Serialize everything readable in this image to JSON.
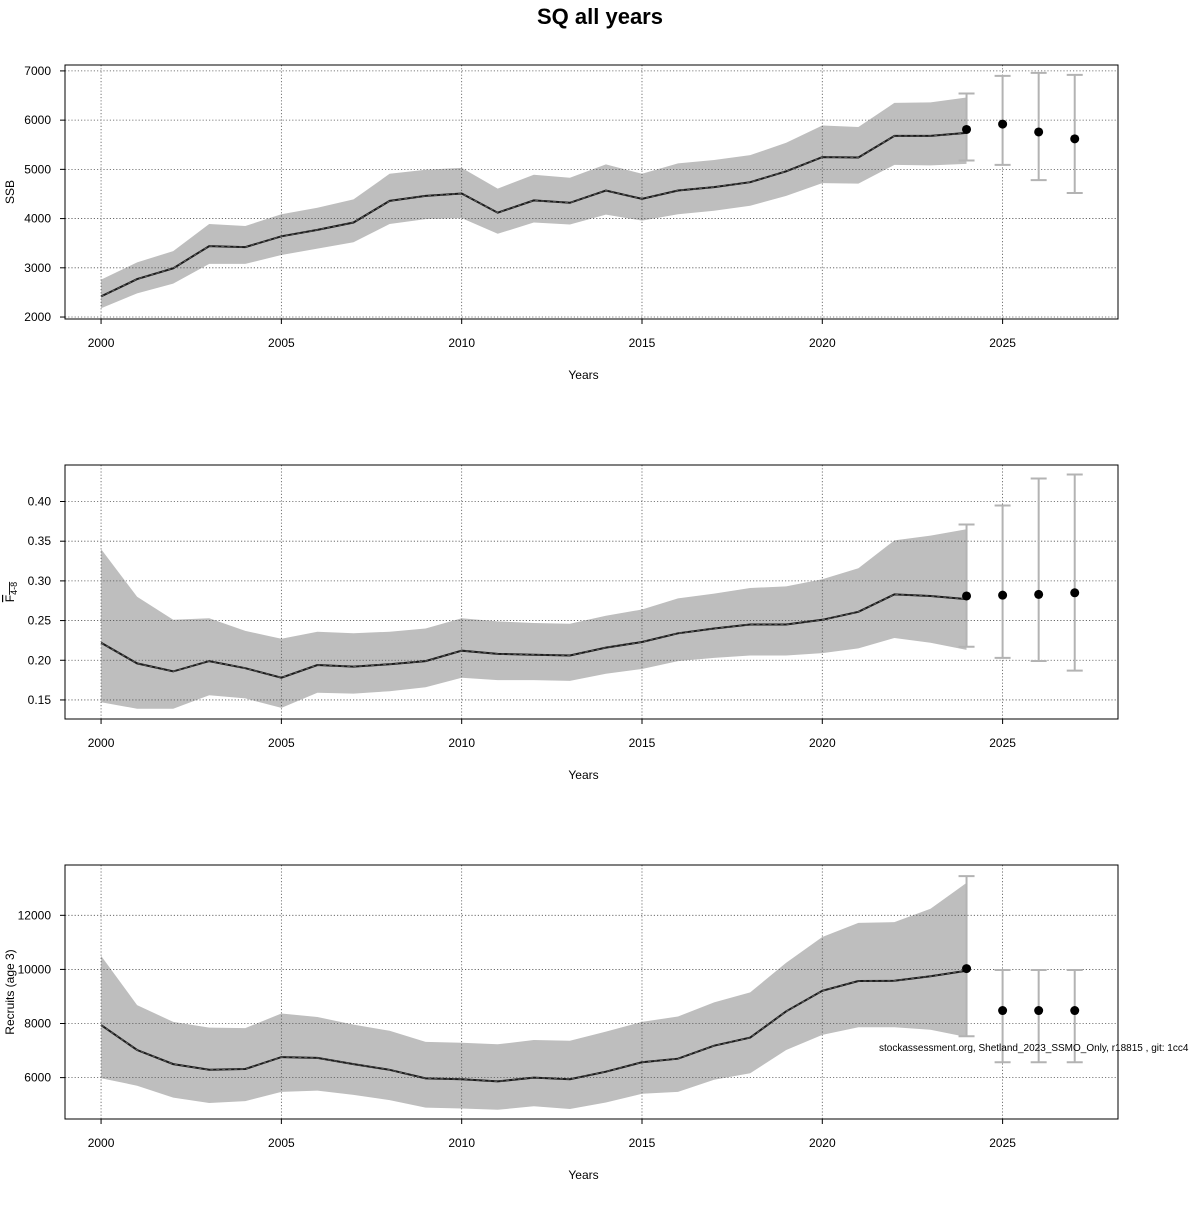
{
  "figure": {
    "title": "SQ all years",
    "credit": "stockassessment.org, Shetland_2023_SSMO_Only, r18815 , git: 1cc4"
  },
  "colors": {
    "band": "#bebebe",
    "line": "#1a1a1a",
    "errorbar": "#b3b3b3",
    "point": "#000000",
    "grid": "#555555",
    "frame": "#000000"
  },
  "chart_data": [
    {
      "type": "line",
      "title": "SSB",
      "ylabel": "SSB",
      "xlabel": "Years",
      "xlim": [
        1999,
        2028.2
      ],
      "ylim": [
        1960,
        7120
      ],
      "xticks": [
        2000,
        2005,
        2010,
        2015,
        2020,
        2025
      ],
      "yticks": [
        2000,
        3000,
        4000,
        5000,
        6000,
        7000
      ],
      "grid": true,
      "years": [
        2000,
        2001,
        2002,
        2003,
        2004,
        2005,
        2006,
        2007,
        2008,
        2009,
        2010,
        2011,
        2012,
        2013,
        2014,
        2015,
        2016,
        2017,
        2018,
        2019,
        2020,
        2021,
        2022,
        2023,
        2024
      ],
      "estimate": [
        2420,
        2770,
        2990,
        3440,
        3420,
        3640,
        3770,
        3920,
        4360,
        4460,
        4510,
        4120,
        4370,
        4320,
        4570,
        4400,
        4570,
        4640,
        4740,
        4960,
        5250,
        5240,
        5680,
        5680,
        5740
      ],
      "lower": [
        2180,
        2480,
        2680,
        3080,
        3080,
        3260,
        3390,
        3520,
        3890,
        3990,
        4010,
        3690,
        3920,
        3880,
        4080,
        3960,
        4090,
        4160,
        4260,
        4460,
        4720,
        4710,
        5090,
        5080,
        5110
      ],
      "upper": [
        2760,
        3110,
        3340,
        3890,
        3850,
        4090,
        4220,
        4390,
        4910,
        4990,
        5030,
        4610,
        4890,
        4830,
        5100,
        4910,
        5120,
        5190,
        5290,
        5540,
        5890,
        5860,
        6350,
        6360,
        6460
      ],
      "forecast": {
        "years": [
          2024,
          2025,
          2026,
          2027
        ],
        "median": [
          5810,
          5920,
          5760,
          5620
        ],
        "lower": [
          5180,
          5090,
          4780,
          4520
        ],
        "upper": [
          6540,
          6900,
          6960,
          6920
        ]
      }
    },
    {
      "type": "line",
      "title": "F4-8",
      "ylabel": "F",
      "ylabel_sub": "4-8",
      "xlabel": "Years",
      "xlim": [
        1999,
        2028.2
      ],
      "ylim": [
        0.126,
        0.446
      ],
      "xticks": [
        2000,
        2005,
        2010,
        2015,
        2020,
        2025
      ],
      "yticks": [
        0.15,
        0.2,
        0.25,
        0.3,
        0.35,
        0.4
      ],
      "ytick_labels": [
        "0.15",
        "0.20",
        "0.25",
        "0.30",
        "0.35",
        "0.40"
      ],
      "grid": true,
      "years": [
        2000,
        2001,
        2002,
        2003,
        2004,
        2005,
        2006,
        2007,
        2008,
        2009,
        2010,
        2011,
        2012,
        2013,
        2014,
        2015,
        2016,
        2017,
        2018,
        2019,
        2020,
        2021,
        2022,
        2023,
        2024
      ],
      "estimate": [
        0.222,
        0.196,
        0.186,
        0.199,
        0.19,
        0.178,
        0.194,
        0.192,
        0.195,
        0.199,
        0.212,
        0.208,
        0.207,
        0.206,
        0.216,
        0.223,
        0.234,
        0.24,
        0.245,
        0.245,
        0.251,
        0.261,
        0.283,
        0.281,
        0.277
      ],
      "lower": [
        0.147,
        0.139,
        0.139,
        0.156,
        0.152,
        0.14,
        0.159,
        0.158,
        0.161,
        0.166,
        0.178,
        0.175,
        0.175,
        0.174,
        0.183,
        0.189,
        0.199,
        0.203,
        0.206,
        0.206,
        0.209,
        0.215,
        0.228,
        0.222,
        0.213
      ],
      "upper": [
        0.34,
        0.28,
        0.251,
        0.253,
        0.237,
        0.227,
        0.236,
        0.234,
        0.236,
        0.24,
        0.253,
        0.249,
        0.247,
        0.246,
        0.256,
        0.264,
        0.278,
        0.284,
        0.291,
        0.293,
        0.302,
        0.316,
        0.351,
        0.357,
        0.365
      ],
      "forecast": {
        "years": [
          2024,
          2025,
          2026,
          2027
        ],
        "median": [
          0.281,
          0.282,
          0.283,
          0.285
        ],
        "lower": [
          0.217,
          0.203,
          0.199,
          0.187
        ],
        "upper": [
          0.371,
          0.395,
          0.429,
          0.434
        ]
      }
    },
    {
      "type": "line",
      "title": "Recruits (age 3)",
      "ylabel": "Recruits (age 3)",
      "xlabel": "Years",
      "xlim": [
        1999,
        2028.2
      ],
      "ylim": [
        4470,
        13860
      ],
      "xticks": [
        2000,
        2005,
        2010,
        2015,
        2020,
        2025
      ],
      "yticks": [
        6000,
        8000,
        10000,
        12000
      ],
      "grid": true,
      "years": [
        2000,
        2001,
        2002,
        2003,
        2004,
        2005,
        2006,
        2007,
        2008,
        2009,
        2010,
        2011,
        2012,
        2013,
        2014,
        2015,
        2016,
        2017,
        2018,
        2019,
        2020,
        2021,
        2022,
        2023,
        2024
      ],
      "estimate": [
        7940,
        7020,
        6500,
        6290,
        6320,
        6760,
        6730,
        6500,
        6290,
        5970,
        5940,
        5860,
        6000,
        5940,
        6220,
        6570,
        6700,
        7180,
        7480,
        8450,
        9210,
        9570,
        9580,
        9750,
        9950
      ],
      "lower": [
        5980,
        5700,
        5260,
        5060,
        5130,
        5470,
        5520,
        5360,
        5170,
        4890,
        4860,
        4810,
        4940,
        4840,
        5080,
        5400,
        5470,
        5920,
        6160,
        7020,
        7580,
        7860,
        7860,
        7770,
        7500
      ],
      "upper": [
        10500,
        8680,
        8060,
        7850,
        7830,
        8370,
        8240,
        7960,
        7730,
        7320,
        7290,
        7230,
        7390,
        7360,
        7700,
        8060,
        8260,
        8780,
        9150,
        10250,
        11200,
        11720,
        11750,
        12240,
        13200
      ],
      "forecast": {
        "years": [
          2024,
          2025,
          2026,
          2027
        ],
        "median": [
          10030,
          8480,
          8480,
          8480
        ],
        "lower": [
          7530,
          6570,
          6570,
          6570
        ],
        "upper": [
          13450,
          9980,
          9980,
          9980
        ]
      }
    }
  ]
}
